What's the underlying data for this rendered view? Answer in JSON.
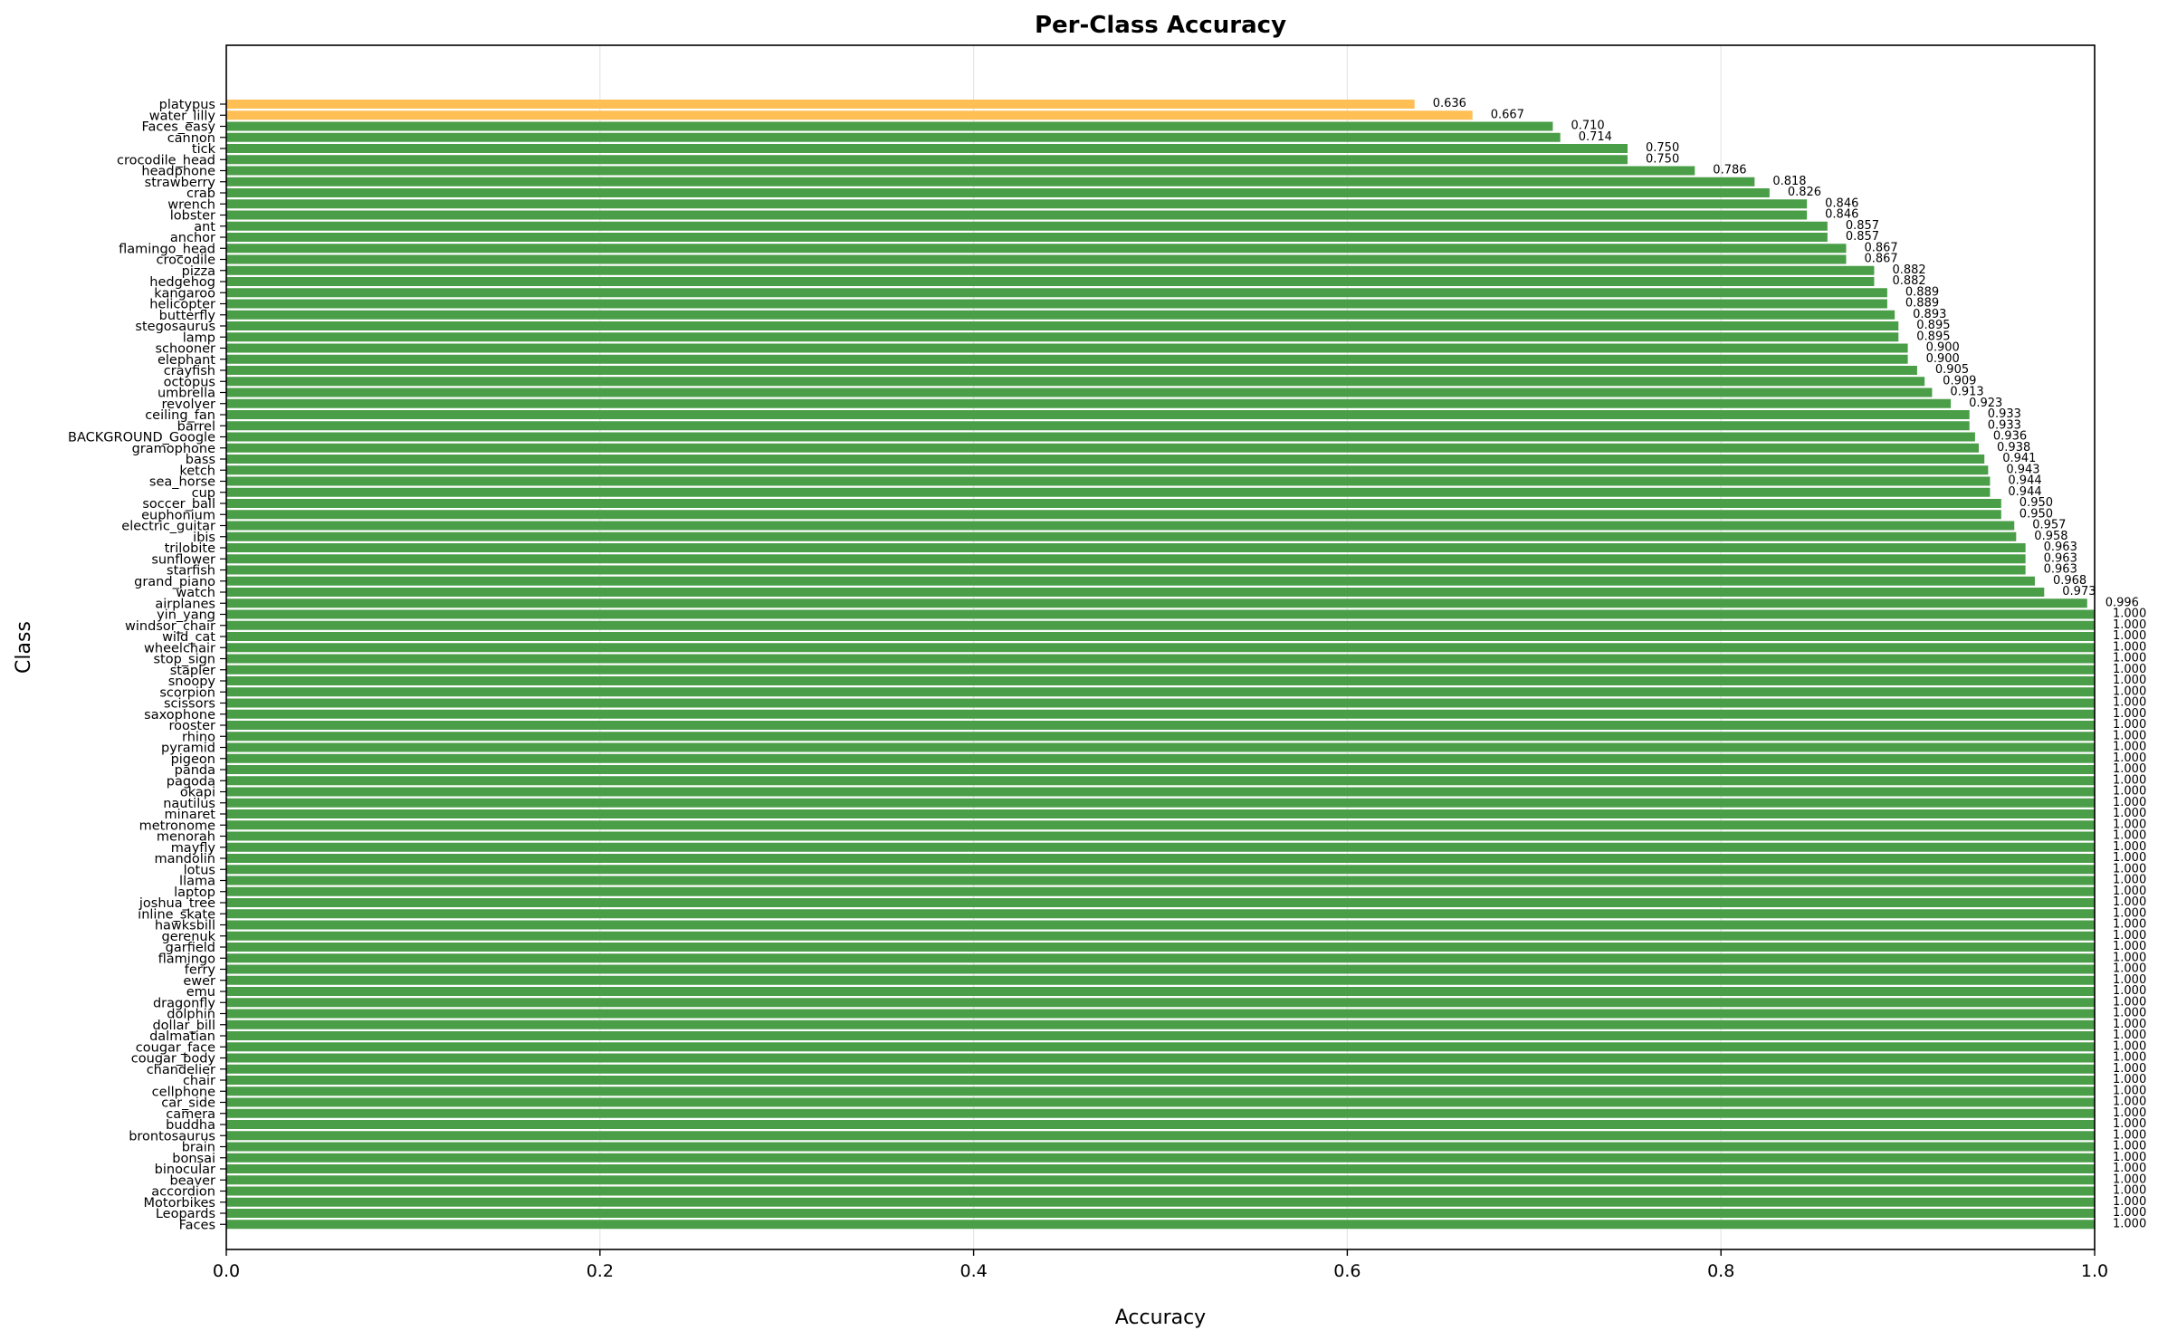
{
  "chart_data": {
    "type": "bar",
    "orientation": "horizontal",
    "title": "Per-Class Accuracy",
    "xlabel": "Accuracy",
    "ylabel": "Class",
    "xlim": [
      0.0,
      1.0
    ],
    "xticks": [
      "0.0",
      "0.2",
      "0.4",
      "0.6",
      "0.8",
      "1.0"
    ],
    "grid": "vertical",
    "colors": {
      "high": "#4a9e48",
      "low": "#ffbf55"
    },
    "low_threshold": 0.7,
    "categories": [
      "platypus",
      "water_lilly",
      "Faces_easy",
      "cannon",
      "tick",
      "crocodile_head",
      "headphone",
      "strawberry",
      "crab",
      "wrench",
      "lobster",
      "ant",
      "anchor",
      "flamingo_head",
      "crocodile",
      "pizza",
      "hedgehog",
      "kangaroo",
      "helicopter",
      "butterfly",
      "stegosaurus",
      "lamp",
      "schooner",
      "elephant",
      "crayfish",
      "octopus",
      "umbrella",
      "revolver",
      "ceiling_fan",
      "barrel",
      "BACKGROUND_Google",
      "gramophone",
      "bass",
      "ketch",
      "sea_horse",
      "cup",
      "soccer_ball",
      "euphonium",
      "electric_guitar",
      "ibis",
      "trilobite",
      "sunflower",
      "starfish",
      "grand_piano",
      "watch",
      "airplanes",
      "yin_yang",
      "windsor_chair",
      "wild_cat",
      "wheelchair",
      "stop_sign",
      "stapler",
      "snoopy",
      "scorpion",
      "scissors",
      "saxophone",
      "rooster",
      "rhino",
      "pyramid",
      "pigeon",
      "panda",
      "pagoda",
      "okapi",
      "nautilus",
      "minaret",
      "metronome",
      "menorah",
      "mayfly",
      "mandolin",
      "lotus",
      "llama",
      "laptop",
      "joshua_tree",
      "inline_skate",
      "hawksbill",
      "gerenuk",
      "garfield",
      "flamingo",
      "ferry",
      "ewer",
      "emu",
      "dragonfly",
      "dolphin",
      "dollar_bill",
      "dalmatian",
      "cougar_face",
      "cougar_body",
      "chandelier",
      "chair",
      "cellphone",
      "car_side",
      "camera",
      "buddha",
      "brontosaurus",
      "brain",
      "bonsai",
      "binocular",
      "beaver",
      "accordion",
      "Motorbikes",
      "Leopards",
      "Faces"
    ],
    "values": [
      0.636,
      0.667,
      0.71,
      0.714,
      0.75,
      0.75,
      0.786,
      0.818,
      0.826,
      0.846,
      0.846,
      0.857,
      0.857,
      0.867,
      0.867,
      0.882,
      0.882,
      0.889,
      0.889,
      0.893,
      0.895,
      0.895,
      0.9,
      0.9,
      0.905,
      0.909,
      0.913,
      0.923,
      0.933,
      0.933,
      0.936,
      0.938,
      0.941,
      0.943,
      0.944,
      0.944,
      0.95,
      0.95,
      0.957,
      0.958,
      0.963,
      0.963,
      0.963,
      0.968,
      0.973,
      0.996,
      1.0,
      1.0,
      1.0,
      1.0,
      1.0,
      1.0,
      1.0,
      1.0,
      1.0,
      1.0,
      1.0,
      1.0,
      1.0,
      1.0,
      1.0,
      1.0,
      1.0,
      1.0,
      1.0,
      1.0,
      1.0,
      1.0,
      1.0,
      1.0,
      1.0,
      1.0,
      1.0,
      1.0,
      1.0,
      1.0,
      1.0,
      1.0,
      1.0,
      1.0,
      1.0,
      1.0,
      1.0,
      1.0,
      1.0,
      1.0,
      1.0,
      1.0,
      1.0,
      1.0,
      1.0,
      1.0,
      1.0,
      1.0,
      1.0,
      1.0,
      1.0,
      1.0,
      1.0,
      1.0,
      1.0,
      1.0
    ]
  }
}
